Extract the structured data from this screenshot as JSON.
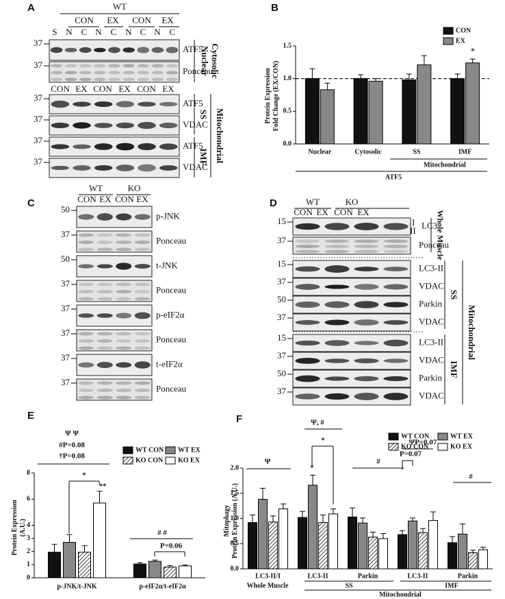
{
  "blot_a": {
    "label": "A",
    "genotype": "WT",
    "groups": [
      "CON",
      "EX",
      "CON",
      "EX"
    ],
    "lanes": [
      "S",
      "N",
      "C",
      "N",
      "C",
      "N",
      "C",
      "N",
      "C"
    ],
    "rows": [
      {
        "marker": "37",
        "label": "ATF5"
      },
      {
        "marker": "37",
        "label": "Ponceau"
      }
    ],
    "side": [
      "Nuclear",
      "Cytosolic"
    ],
    "mito_groups": [
      "CON",
      "EX",
      "CON",
      "EX",
      "CON",
      "EX"
    ],
    "mito_rows": [
      {
        "marker": "37",
        "label": "ATF5"
      },
      {
        "marker": "37",
        "label": "VDAC"
      },
      {
        "marker": "37",
        "label": "ATF5"
      },
      {
        "marker": "37",
        "label": "VDAC"
      }
    ],
    "fractions": [
      "SS",
      "IMF"
    ],
    "mito_label": "Mitochondrial"
  },
  "blot_c": {
    "label": "C",
    "genotypes": [
      "WT",
      "KO"
    ],
    "groups": [
      "CON",
      "EX",
      "CON",
      "EX"
    ],
    "rows": [
      {
        "marker": "50",
        "label": "p-JNK"
      },
      {
        "marker": "37",
        "label": "Ponceau"
      },
      {
        "marker": "50",
        "label": "t-JNK"
      },
      {
        "marker": "37",
        "label": "Ponceau"
      },
      {
        "marker": "37",
        "label": "p-eIF2α"
      },
      {
        "marker": "37",
        "label": "Ponceau"
      },
      {
        "marker": "37",
        "label": "t-eIF2α"
      },
      {
        "marker": "37",
        "label": "Ponceau"
      }
    ]
  },
  "blot_d": {
    "label": "D",
    "genotypes": [
      "WT",
      "KO"
    ],
    "groups": [
      "CON",
      "EX",
      "CON",
      "EX"
    ],
    "bands": [
      "I",
      "II"
    ],
    "rows": [
      {
        "marker": "15",
        "label": "LC3"
      },
      {
        "marker": "37",
        "label": "Ponceau"
      },
      {
        "marker": "15",
        "label": "LC3-II"
      },
      {
        "marker": "37",
        "label": "VDAC"
      },
      {
        "marker": "50",
        "label": "Parkin"
      },
      {
        "marker": "37",
        "label": "VDAC"
      },
      {
        "marker": "15",
        "label": "LC3-II"
      },
      {
        "marker": "37",
        "label": "VDAC"
      },
      {
        "marker": "50",
        "label": "Parkin"
      },
      {
        "marker": "37",
        "label": "VDAC"
      }
    ],
    "side": "Whole Muscle",
    "fractions": [
      "SS",
      "IMF"
    ],
    "mito_label": "Mitochondrial"
  },
  "chart_data": [
    {
      "type": "bar",
      "panel": "B",
      "ylabel": [
        "Protein Expression",
        "Fold Change (EX/CON)"
      ],
      "categories": [
        "Nuclear",
        "Cytosolic",
        "SS",
        "IMF"
      ],
      "series": [
        {
          "name": "CON",
          "color": "#111111",
          "values": [
            1.0,
            1.0,
            0.98,
            1.0
          ],
          "errors": [
            0.15,
            0.06,
            0.09,
            0.07
          ]
        },
        {
          "name": "EX",
          "color": "#888888",
          "values": [
            0.83,
            0.96,
            1.21,
            1.24
          ],
          "errors": [
            0.1,
            0.04,
            0.14,
            0.06
          ]
        }
      ],
      "ylim": [
        0,
        1.5
      ],
      "yticks": [
        {
          "value": 0,
          "label": "0.0"
        },
        {
          "value": 0.5,
          "label": "0.5"
        },
        {
          "value": 1,
          "label": "1.0"
        },
        {
          "value": 1.5,
          "label": "1.5"
        }
      ],
      "reference_line": 1,
      "group_labels": [
        "Mitochondrial",
        "ATF5"
      ],
      "annotations": [
        "*"
      ]
    },
    {
      "type": "bar",
      "panel": "E",
      "ylabel": [
        "Protein Expression",
        "(A.U.)"
      ],
      "categories": [
        "p-JNK/t-JNK",
        "p-eIF2α/t-eIF2α"
      ],
      "series": [
        {
          "name": "WT CON",
          "color": "#111111",
          "values": [
            1.95,
            1.05
          ],
          "errors": [
            0.6,
            0.1
          ]
        },
        {
          "name": "WT EX",
          "color": "#888888",
          "values": [
            2.7,
            1.25
          ],
          "errors": [
            0.6,
            0.1
          ]
        },
        {
          "name": "KO CON",
          "color": "#ffffff",
          "hatch": true,
          "values": [
            1.95,
            0.82
          ],
          "errors": [
            0.5,
            0.1
          ]
        },
        {
          "name": "KO EX",
          "color": "#ffffff",
          "values": [
            5.7,
            0.9
          ],
          "errors": [
            0.9,
            0.08
          ]
        }
      ],
      "ylim": [
        0,
        8
      ],
      "yticks": [
        0,
        1,
        2,
        3,
        4,
        6,
        8
      ],
      "group_labels": [],
      "annotations": [
        "Ψ Ψ",
        "#P=0.08",
        "†P=0.08",
        "*",
        "**",
        "# #",
        "P=0.06"
      ]
    },
    {
      "type": "bar",
      "panel": "F",
      "ylabel": [
        "Mitophagy",
        "Protein Expression (A.U.)"
      ],
      "categories": [
        "LC3-II/I",
        "LC3-II",
        "Parkin",
        "LC3-II",
        "Parkin"
      ],
      "series": [
        {
          "name": "WT CON",
          "color": "#111111",
          "values": [
            0.92,
            1.02,
            1.03,
            0.68,
            0.52
          ],
          "errors": [
            0.15,
            0.12,
            0.18,
            0.08,
            0.12
          ]
        },
        {
          "name": "WT EX",
          "color": "#888888",
          "values": [
            1.38,
            1.66,
            0.91,
            0.95,
            0.69
          ],
          "errors": [
            0.22,
            0.2,
            0.1,
            0.06,
            0.2
          ]
        },
        {
          "name": "KO CON",
          "color": "#ffffff",
          "hatch": true,
          "values": [
            0.93,
            0.92,
            0.63,
            0.72,
            0.32
          ],
          "errors": [
            0.12,
            0.15,
            0.1,
            0.08,
            0.05
          ]
        },
        {
          "name": "KO EX",
          "color": "#ffffff",
          "values": [
            1.19,
            1.09,
            0.6,
            0.96,
            0.38
          ],
          "errors": [
            0.1,
            0.1,
            0.1,
            0.17,
            0.05
          ]
        }
      ],
      "ylim": [
        0,
        2
      ],
      "yticks": [
        {
          "value": 0,
          "label": "0.0"
        },
        {
          "value": 0.5,
          "label": "0.5"
        },
        {
          "value": 1,
          "label": "1.0"
        },
        {
          "value": 1.5,
          "label": "1.5"
        },
        {
          "value": 2,
          "label": "2.0"
        }
      ],
      "group_labels": [
        "Whole Muscle",
        "SS",
        "IMF",
        "Mitochondrial"
      ],
      "annotations": [
        "Ψ",
        "Ψ, #",
        "*",
        "*",
        "#",
        "ΨP=0.07",
        "P=0.07",
        "#"
      ]
    }
  ]
}
